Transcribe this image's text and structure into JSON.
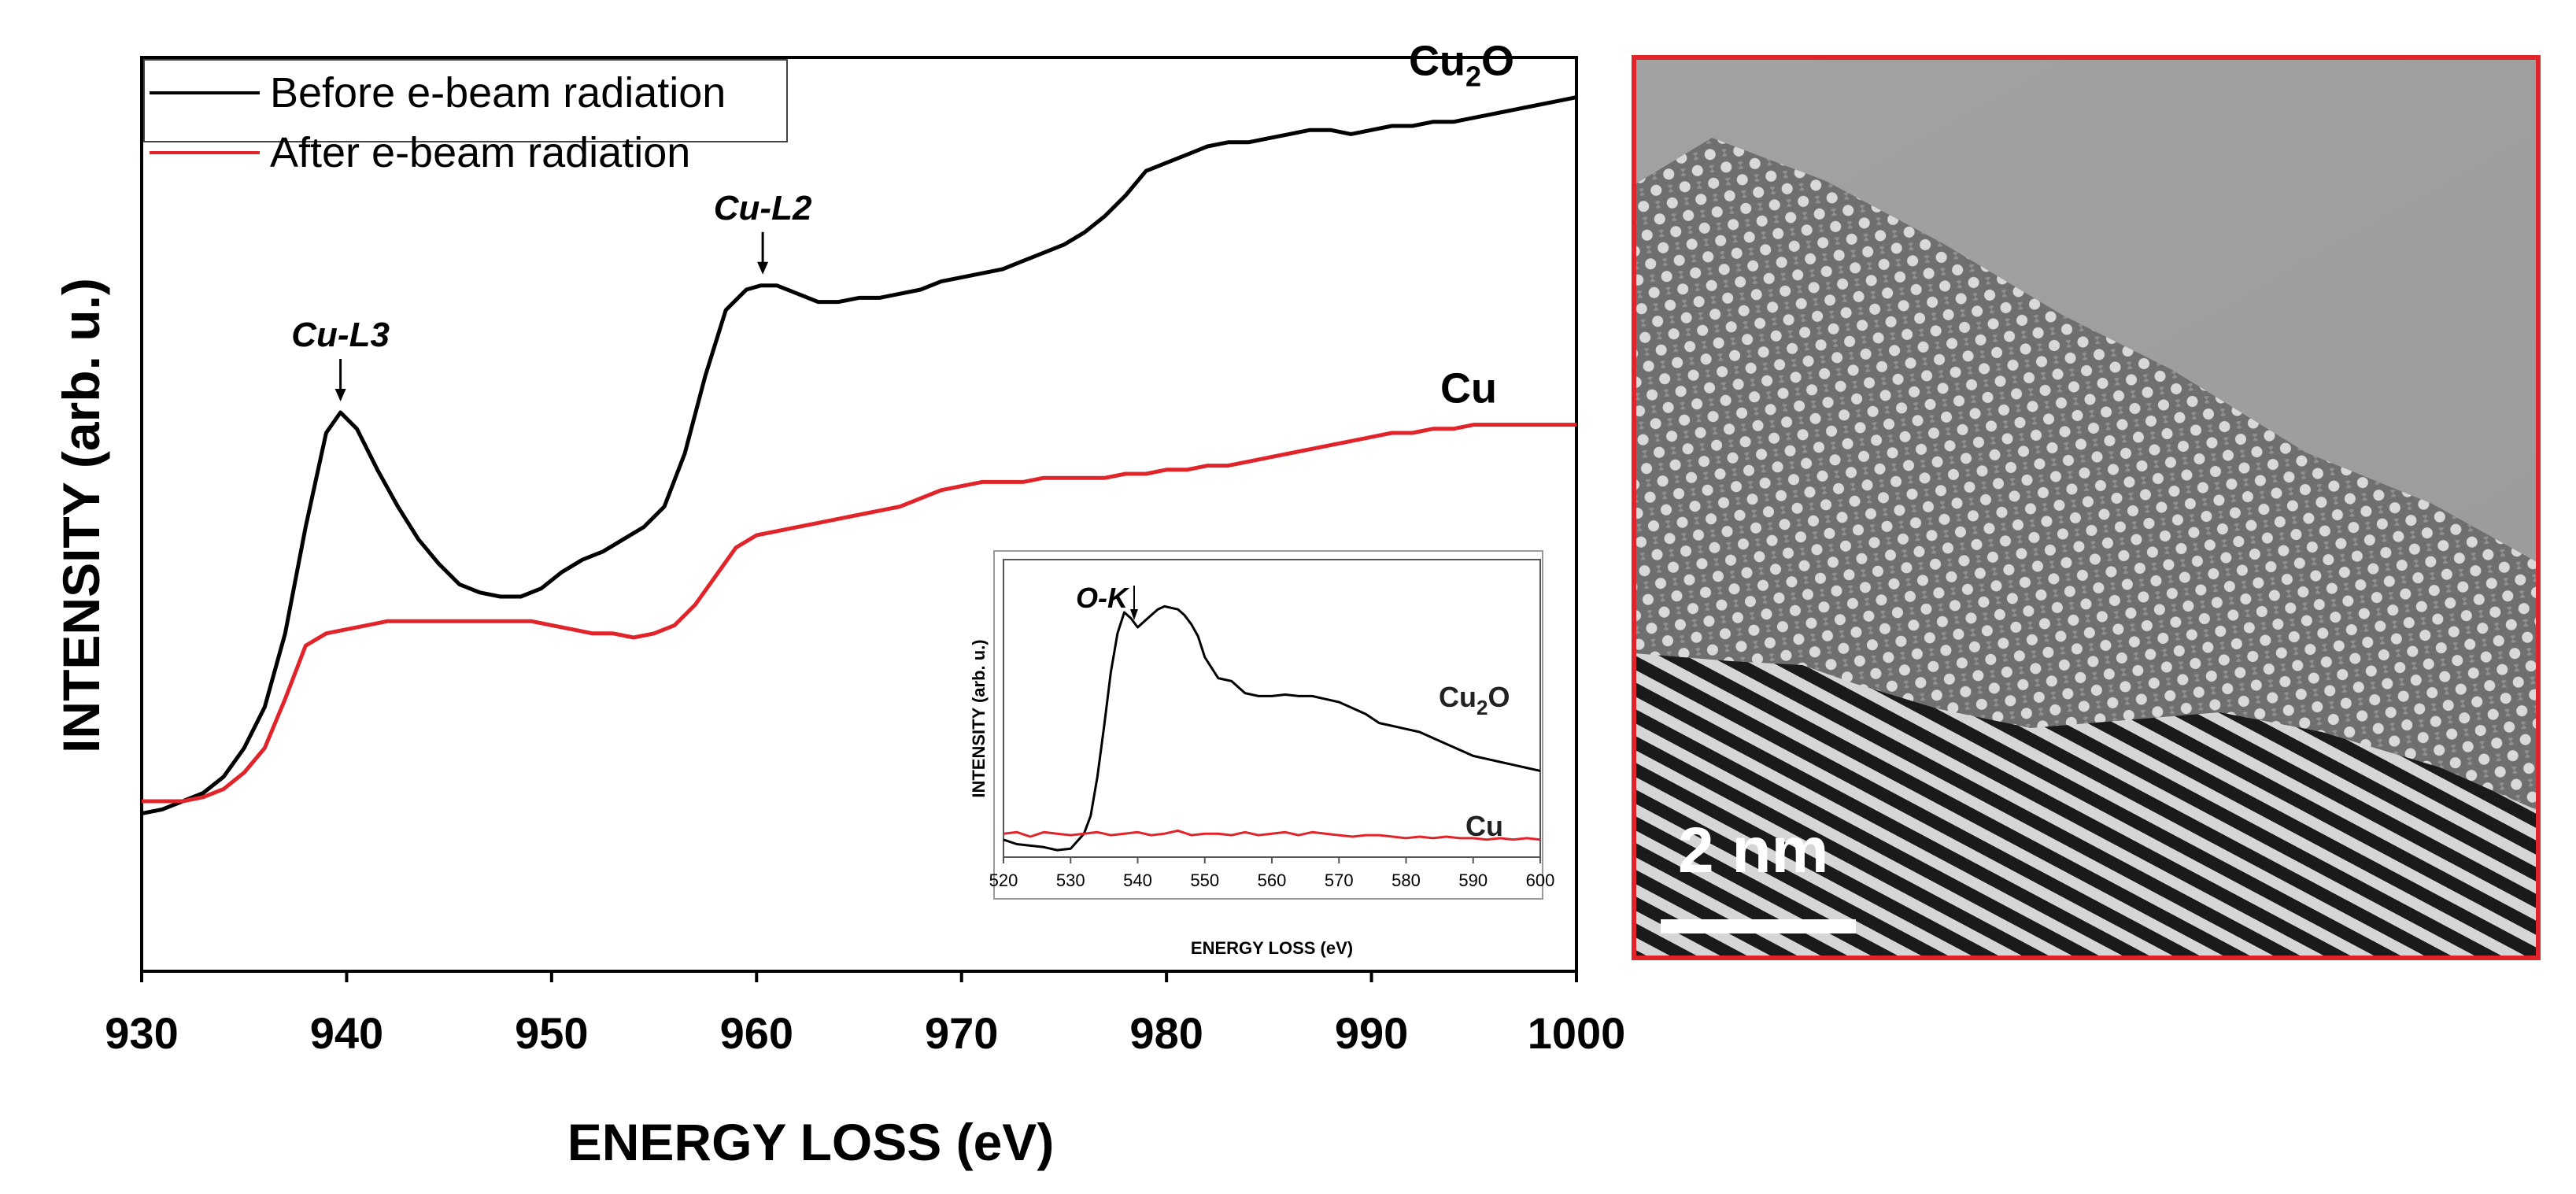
{
  "chart_data": [
    {
      "id": "main",
      "type": "line",
      "title": "",
      "xlabel": "ENERGY LOSS (eV)",
      "ylabel": "INTENSITY (arb. u.)",
      "xlim": [
        930,
        1000
      ],
      "ylim": [
        0,
        100
      ],
      "xticks": [
        930,
        940,
        950,
        960,
        970,
        980,
        990,
        1000
      ],
      "yticks_visible": false,
      "grid": false,
      "legend": {
        "position": "top-left",
        "entries": [
          {
            "label": "Before e-beam radiation",
            "color": "#000000"
          },
          {
            "label": "After e-beam radiation",
            "color": "#e0242a"
          }
        ]
      },
      "series": [
        {
          "name": "Before e-beam radiation",
          "color": "#000000",
          "label": "Cu2O",
          "x": [
            930,
            931,
            932,
            933,
            934,
            935,
            936,
            937,
            938,
            939,
            939.7,
            940.5,
            941.5,
            942.5,
            943.5,
            944.5,
            945.5,
            946.5,
            947.5,
            948.5,
            949.5,
            950.5,
            951.5,
            952.5,
            953.5,
            954.5,
            955.5,
            956.5,
            957.5,
            958.5,
            959.5,
            960.2,
            961,
            962,
            963,
            964,
            965,
            966,
            967,
            968,
            969,
            970,
            971,
            972,
            973,
            974,
            975,
            976,
            977,
            978,
            979,
            980,
            981,
            982,
            983,
            984,
            985,
            986,
            987,
            988,
            989,
            990,
            991,
            992,
            993,
            994,
            995,
            996,
            997,
            998,
            999,
            1000
          ],
          "y": [
            16,
            16.5,
            17.5,
            18.5,
            20.5,
            24,
            29,
            38,
            51,
            62.5,
            65,
            63,
            58,
            53.5,
            49.5,
            46.5,
            44,
            43,
            42.5,
            42.5,
            43.5,
            45.5,
            47,
            48,
            49.5,
            51,
            53.5,
            60,
            69.5,
            77.5,
            80,
            80.5,
            80.5,
            79.5,
            78.5,
            78.5,
            79,
            79,
            79.5,
            80,
            81,
            81.5,
            82,
            82.5,
            83.5,
            84.5,
            85.5,
            87,
            89,
            91.5,
            94.5,
            95.5,
            96.5,
            97.5,
            98,
            98,
            98.5,
            99,
            99.5,
            99.5,
            99,
            99.5,
            100,
            100,
            100.5,
            100.5,
            101,
            101.5,
            102,
            102.5,
            103,
            103.5
          ]
        },
        {
          "name": "After e-beam radiation",
          "color": "#e0242a",
          "label": "Cu",
          "x": [
            930,
            931,
            932,
            933,
            934,
            935,
            936,
            937,
            938,
            939,
            940,
            941,
            942,
            943,
            944,
            945,
            946,
            947,
            948,
            949,
            950,
            951,
            952,
            953,
            954,
            955,
            956,
            957,
            958,
            959,
            960,
            961,
            962,
            963,
            964,
            965,
            966,
            967,
            968,
            969,
            970,
            971,
            972,
            973,
            974,
            975,
            976,
            977,
            978,
            979,
            980,
            981,
            982,
            983,
            984,
            985,
            986,
            987,
            988,
            989,
            990,
            991,
            992,
            993,
            994,
            995,
            996,
            997,
            998,
            999,
            1000
          ],
          "y": [
            17.5,
            17.5,
            17.5,
            18,
            19,
            21,
            24,
            30,
            36.5,
            38,
            38.5,
            39,
            39.5,
            39.5,
            39.5,
            39.5,
            39.5,
            39.5,
            39.5,
            39.5,
            39,
            38.5,
            38,
            38,
            37.5,
            38,
            39,
            41.5,
            45,
            48.5,
            50,
            50.5,
            51,
            51.5,
            52,
            52.5,
            53,
            53.5,
            54.5,
            55.5,
            56,
            56.5,
            56.5,
            56.5,
            57,
            57,
            57,
            57,
            57.5,
            57.5,
            58,
            58,
            58.5,
            58.5,
            59,
            59.5,
            60,
            60.5,
            61,
            61.5,
            62,
            62.5,
            62.5,
            63,
            63,
            63.5,
            63.5,
            63.5,
            63.5,
            63.5,
            63.5
          ]
        }
      ],
      "annotations": [
        {
          "text": "Cu-L3",
          "x": 939.7
        },
        {
          "text": "Cu-L2",
          "x": 960.3
        }
      ],
      "series_labels": [
        {
          "text_main": "Cu",
          "text_sub": "2",
          "text_tail": "O",
          "series": "Before e-beam radiation"
        },
        {
          "text_main": "Cu",
          "text_sub": "",
          "text_tail": "",
          "series": "After e-beam radiation"
        }
      ]
    },
    {
      "id": "inset",
      "type": "line",
      "title": "",
      "xlabel": "ENERGY LOSS (eV)",
      "ylabel": "INTENSITY (arb. u.)",
      "xlim": [
        520,
        600
      ],
      "ylim": [
        0,
        100
      ],
      "xticks": [
        520,
        530,
        540,
        550,
        560,
        570,
        580,
        590,
        600
      ],
      "grid": false,
      "series": [
        {
          "name": "Cu2O",
          "color": "#000000",
          "x": [
            520,
            522,
            524,
            526,
            528,
            530,
            532,
            533,
            534,
            535,
            536,
            537,
            538,
            539,
            540,
            541,
            542,
            543,
            544,
            545,
            546,
            547,
            548,
            549,
            550,
            552,
            554,
            556,
            558,
            560,
            562,
            564,
            566,
            568,
            570,
            572,
            574,
            576,
            578,
            580,
            582,
            584,
            586,
            588,
            590,
            592,
            594,
            596,
            598,
            600
          ],
          "y": [
            14,
            12.5,
            12,
            11.5,
            10.5,
            11,
            16,
            22,
            35,
            52,
            70,
            83,
            90,
            88,
            85,
            87,
            89,
            91,
            92,
            91.5,
            91,
            89,
            86,
            82,
            75,
            68,
            67,
            63,
            62,
            62,
            62.5,
            62,
            62,
            61,
            60,
            58,
            56,
            53,
            52,
            51,
            50,
            48,
            46,
            44,
            42,
            41,
            40,
            39,
            38,
            37
          ]
        },
        {
          "name": "Cu",
          "color": "#e0242a",
          "x": [
            520,
            522,
            524,
            526,
            528,
            530,
            532,
            534,
            536,
            538,
            540,
            542,
            544,
            546,
            548,
            550,
            552,
            554,
            556,
            558,
            560,
            562,
            564,
            566,
            568,
            570,
            572,
            574,
            576,
            578,
            580,
            582,
            584,
            586,
            588,
            590,
            592,
            594,
            596,
            598,
            600
          ],
          "y": [
            16,
            16.5,
            15,
            16.5,
            16,
            15.5,
            16,
            16.5,
            15.5,
            16,
            16.5,
            15.5,
            16,
            17,
            15.5,
            16,
            16,
            15.5,
            16.5,
            15.5,
            16,
            16.5,
            15.5,
            16.5,
            16,
            15.5,
            15,
            15.5,
            15.5,
            15,
            14.5,
            15,
            14.5,
            15,
            14.5,
            14.5,
            14,
            14.5,
            14,
            14.5,
            14
          ]
        }
      ],
      "annotations": [
        {
          "text": "O-K",
          "x": 539
        }
      ],
      "series_labels": [
        {
          "text_main": "Cu",
          "text_sub": "2",
          "text_tail": "O",
          "series": "Cu2O"
        },
        {
          "text_main": "Cu",
          "text_sub": "",
          "text_tail": "",
          "series": "Cu"
        }
      ]
    }
  ],
  "micrograph": {
    "frame_color": "#e0242a",
    "scale_bar_label": "2 nm",
    "scale_bar_value_nm": 2
  }
}
